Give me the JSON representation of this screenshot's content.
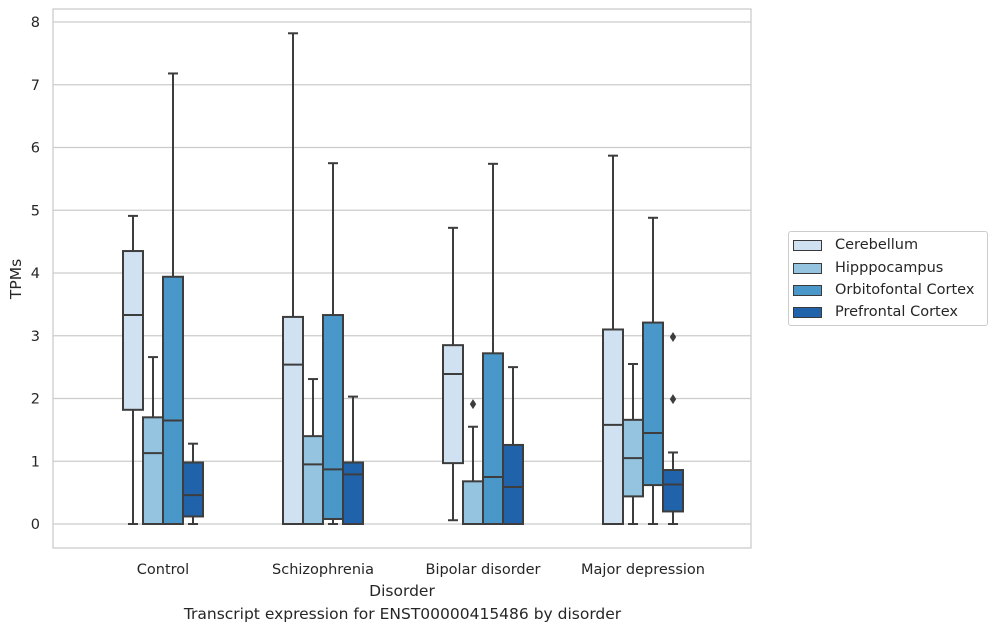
{
  "chart_data": {
    "type": "box",
    "title": "",
    "xlabel": "Disorder",
    "ylabel": "TPMs",
    "ylim": [
      -0.38,
      8.2
    ],
    "yticks": [
      0,
      1,
      2,
      3,
      4,
      5,
      6,
      7,
      8
    ],
    "categories": [
      "Control",
      "Schizophrenia",
      "Bipolar disorder",
      "Major depression"
    ],
    "grid": true,
    "legend_position": "right",
    "series": [
      {
        "name": "Cerebellum",
        "color": "#d0e1f2",
        "boxes": [
          {
            "min": 0.0,
            "q1": 1.82,
            "median": 3.33,
            "q3": 4.35,
            "max": 4.91,
            "outliers": []
          },
          {
            "min": 0.0,
            "q1": 0.0,
            "median": 2.54,
            "q3": 3.3,
            "max": 7.82,
            "outliers": []
          },
          {
            "min": 0.06,
            "q1": 0.97,
            "median": 2.39,
            "q3": 2.85,
            "max": 4.72,
            "outliers": []
          },
          {
            "min": 0.0,
            "q1": 0.0,
            "median": 1.58,
            "q3": 3.1,
            "max": 5.87,
            "outliers": []
          }
        ]
      },
      {
        "name": "Hipppocampus",
        "color": "#94c4df",
        "boxes": [
          {
            "min": 0.0,
            "q1": 0.0,
            "median": 1.13,
            "q3": 1.7,
            "max": 2.66,
            "outliers": []
          },
          {
            "min": 0.0,
            "q1": 0.0,
            "median": 0.95,
            "q3": 1.4,
            "max": 2.31,
            "outliers": []
          },
          {
            "min": 0.0,
            "q1": 0.0,
            "median": 0.0,
            "q3": 0.68,
            "max": 1.55,
            "outliers": [
              1.91
            ]
          },
          {
            "min": 0.0,
            "q1": 0.44,
            "median": 1.05,
            "q3": 1.66,
            "max": 2.55,
            "outliers": []
          }
        ]
      },
      {
        "name": "Orbitofontal Cortex",
        "color": "#4a98c9",
        "boxes": [
          {
            "min": 0.0,
            "q1": 0.0,
            "median": 1.65,
            "q3": 3.94,
            "max": 7.18,
            "outliers": []
          },
          {
            "min": 0.0,
            "q1": 0.08,
            "median": 0.87,
            "q3": 3.33,
            "max": 5.75,
            "outliers": []
          },
          {
            "min": 0.0,
            "q1": 0.0,
            "median": 0.75,
            "q3": 2.72,
            "max": 5.74,
            "outliers": []
          },
          {
            "min": 0.0,
            "q1": 0.62,
            "median": 1.45,
            "q3": 3.21,
            "max": 4.88,
            "outliers": []
          }
        ]
      },
      {
        "name": "Prefrontal Cortex",
        "color": "#2163aa",
        "boxes": [
          {
            "min": 0.0,
            "q1": 0.12,
            "median": 0.46,
            "q3": 0.98,
            "max": 1.28,
            "outliers": []
          },
          {
            "min": 0.0,
            "q1": 0.0,
            "median": 0.79,
            "q3": 0.98,
            "max": 2.03,
            "outliers": []
          },
          {
            "min": 0.0,
            "q1": 0.0,
            "median": 0.59,
            "q3": 1.26,
            "max": 2.5,
            "outliers": []
          },
          {
            "min": 0.0,
            "q1": 0.2,
            "median": 0.63,
            "q3": 0.86,
            "max": 1.14,
            "outliers": [
              1.99,
              2.98
            ]
          }
        ]
      }
    ],
    "caption": "Transcript expression for ENST00000415486 by disorder"
  }
}
